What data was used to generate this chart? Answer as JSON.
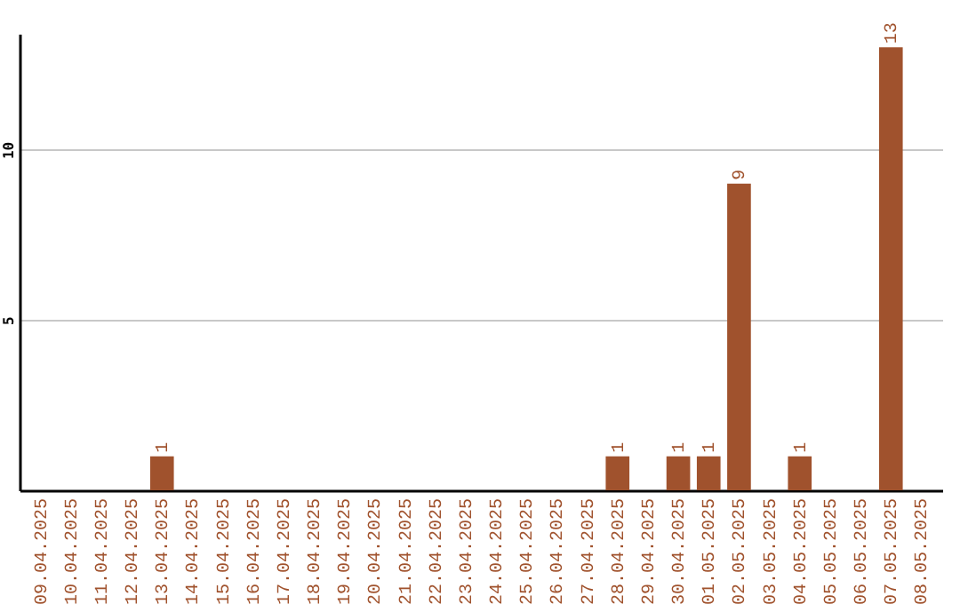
{
  "chart_data": {
    "type": "bar",
    "categories": [
      "09.04.2025",
      "10.04.2025",
      "11.04.2025",
      "12.04.2025",
      "13.04.2025",
      "14.04.2025",
      "15.04.2025",
      "16.04.2025",
      "17.04.2025",
      "18.04.2025",
      "19.04.2025",
      "20.04.2025",
      "21.04.2025",
      "22.04.2025",
      "23.04.2025",
      "24.04.2025",
      "25.04.2025",
      "26.04.2025",
      "27.04.2025",
      "28.04.2025",
      "29.04.2025",
      "30.04.2025",
      "01.05.2025",
      "02.05.2025",
      "03.05.2025",
      "04.05.2025",
      "05.05.2025",
      "06.05.2025",
      "07.05.2025",
      "08.05.2025"
    ],
    "values": [
      0,
      0,
      0,
      0,
      1,
      0,
      0,
      0,
      0,
      0,
      0,
      0,
      0,
      0,
      0,
      0,
      0,
      0,
      0,
      1,
      0,
      1,
      1,
      9,
      0,
      1,
      0,
      0,
      13,
      0
    ],
    "value_labels": [
      null,
      null,
      null,
      null,
      "1",
      null,
      null,
      null,
      null,
      null,
      null,
      null,
      null,
      null,
      null,
      null,
      null,
      null,
      null,
      "1",
      null,
      "1",
      "1",
      "9",
      null,
      "1",
      null,
      null,
      "13",
      null
    ],
    "color": "#a0522d",
    "ylim": [
      0,
      13.4
    ],
    "yticks": [
      5,
      10
    ],
    "grid": "y"
  }
}
